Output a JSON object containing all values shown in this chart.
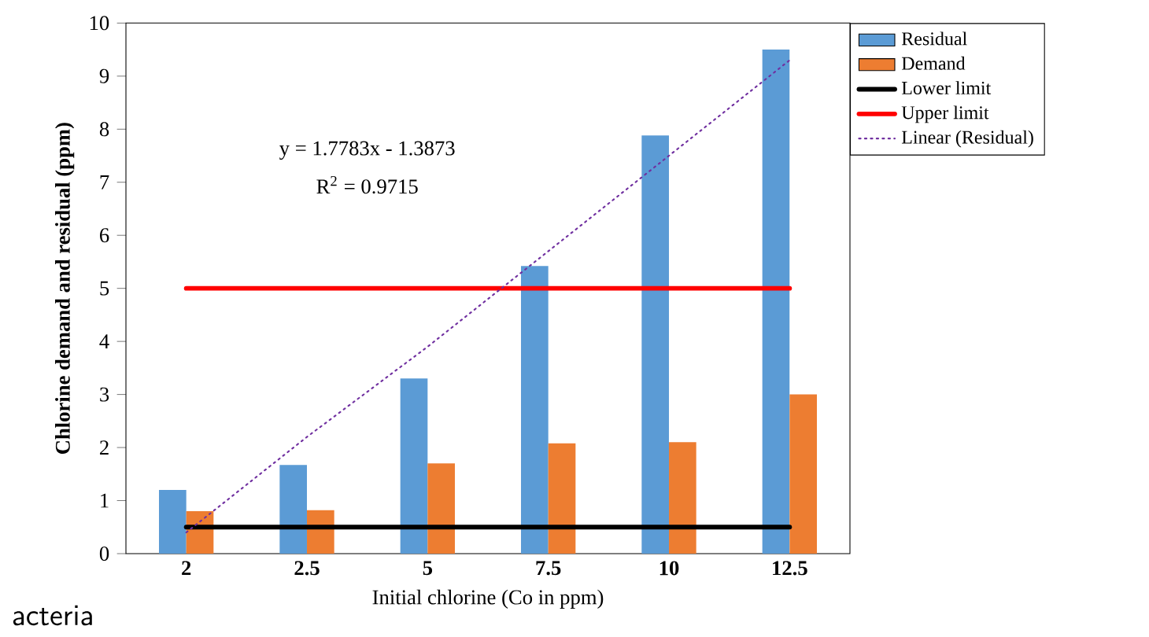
{
  "chart_data": {
    "type": "bar",
    "xlabel": "Initial chlorine (Co in ppm)",
    "ylabel": "Chlorine demand and residual (ppm)",
    "categories": [
      "2",
      "2.5",
      "5",
      "7.5",
      "10",
      "12.5"
    ],
    "series": [
      {
        "name": "Residual",
        "color": "#5b9bd5",
        "values": [
          1.2,
          1.67,
          3.3,
          5.42,
          7.88,
          9.5
        ]
      },
      {
        "name": "Demand",
        "color": "#ed7d31",
        "values": [
          0.8,
          0.82,
          1.7,
          2.08,
          2.1,
          3.0
        ]
      },
      {
        "name": "Lower limit",
        "type": "line",
        "color": "#000000",
        "values": [
          0.5,
          0.5,
          0.5,
          0.5,
          0.5,
          0.5
        ]
      },
      {
        "name": "Upper limit",
        "type": "line",
        "color": "#ff0000",
        "values": [
          5,
          5,
          5,
          5,
          5,
          5
        ]
      },
      {
        "name": "Linear (Residual)",
        "type": "line",
        "line_style": "dotted",
        "color": "#7030a0",
        "values": [
          0.4,
          2.2,
          3.9,
          5.7,
          7.5,
          9.3
        ]
      }
    ],
    "ylim": [
      0,
      10
    ],
    "yticks": [
      0,
      1,
      2,
      3,
      4,
      5,
      6,
      7,
      8,
      9,
      10
    ],
    "legend": "right",
    "annotations": [
      "y = 1.7783x - 1.3873",
      "R$^{2}$ = 0.9715",
      "acteria"
    ]
  }
}
